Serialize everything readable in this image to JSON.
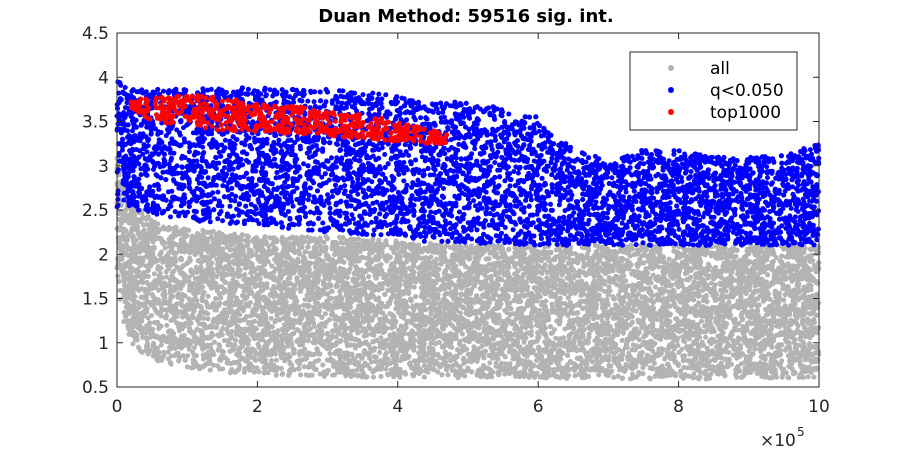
{
  "chart_data": {
    "type": "scatter",
    "title": "Duan Method: 59516 sig. int.",
    "xlabel": "",
    "ylabel": "",
    "x_exponent_label": "×10",
    "x_exponent_power": "5",
    "xlim": [
      0,
      1000000
    ],
    "ylim": [
      0.5,
      4.5
    ],
    "x_ticks": [
      0,
      200000,
      400000,
      600000,
      800000,
      1000000
    ],
    "x_tick_labels": [
      "0",
      "2",
      "4",
      "6",
      "8",
      "10"
    ],
    "y_ticks": [
      0.5,
      1,
      1.5,
      2,
      2.5,
      3,
      3.5,
      4,
      4.5
    ],
    "y_tick_labels": [
      "0.5",
      "1",
      "1.5",
      "2",
      "2.5",
      "3",
      "3.5",
      "4",
      "4.5"
    ],
    "grid": false,
    "legend_position": "top-right",
    "series": [
      {
        "name": "all",
        "color": "#b3b3b3",
        "envelope": {
          "x": [
            0,
            5000,
            10000,
            20000,
            40000,
            60000,
            100000,
            150000,
            200000,
            300000,
            400000,
            500000,
            600000,
            700000,
            800000,
            900000,
            1000000
          ],
          "y_min": [
            1.8,
            1.4,
            1.2,
            1.0,
            0.85,
            0.78,
            0.72,
            0.66,
            0.63,
            0.62,
            0.6,
            0.6,
            0.6,
            0.59,
            0.59,
            0.59,
            0.6
          ],
          "y_max": [
            3.4,
            3.0,
            2.8,
            2.6,
            2.45,
            2.35,
            2.3,
            2.25,
            2.2,
            2.2,
            2.15,
            2.1,
            2.1,
            2.1,
            2.1,
            2.1,
            2.1
          ]
        }
      },
      {
        "name": "q<0.050",
        "color": "#0000ff",
        "envelope": {
          "x": [
            0,
            10000,
            20000,
            50000,
            100000,
            200000,
            300000,
            400000,
            450000,
            500000,
            550000,
            600000,
            650000,
            700000,
            750000,
            800000,
            850000,
            900000,
            950000,
            1000000
          ],
          "y_min": [
            2.5,
            2.6,
            2.5,
            2.45,
            2.38,
            2.32,
            2.25,
            2.2,
            2.12,
            2.12,
            2.1,
            2.1,
            2.1,
            2.1,
            2.1,
            2.1,
            2.1,
            2.1,
            2.1,
            2.1
          ],
          "y_max": [
            4.0,
            3.9,
            3.88,
            3.88,
            3.88,
            3.88,
            3.86,
            3.8,
            3.72,
            3.72,
            3.65,
            3.55,
            3.2,
            3.05,
            3.18,
            3.18,
            3.1,
            3.1,
            3.12,
            3.25
          ]
        }
      },
      {
        "name": "top1000",
        "color": "#ff0000",
        "envelope": {
          "x": [
            20000,
            50000,
            100000,
            150000,
            200000,
            250000,
            300000,
            350000,
            400000,
            450000,
            470000
          ],
          "y_min": [
            3.65,
            3.5,
            3.45,
            3.4,
            3.38,
            3.36,
            3.34,
            3.3,
            3.28,
            3.25,
            3.25
          ],
          "y_max": [
            3.75,
            3.77,
            3.8,
            3.78,
            3.7,
            3.68,
            3.62,
            3.58,
            3.5,
            3.4,
            3.35
          ]
        }
      }
    ]
  },
  "legend": {
    "entries": [
      {
        "label": "all",
        "color": "#b3b3b3"
      },
      {
        "label": "q<0.050",
        "color": "#0000ff"
      },
      {
        "label": "top1000",
        "color": "#ff0000"
      }
    ]
  }
}
